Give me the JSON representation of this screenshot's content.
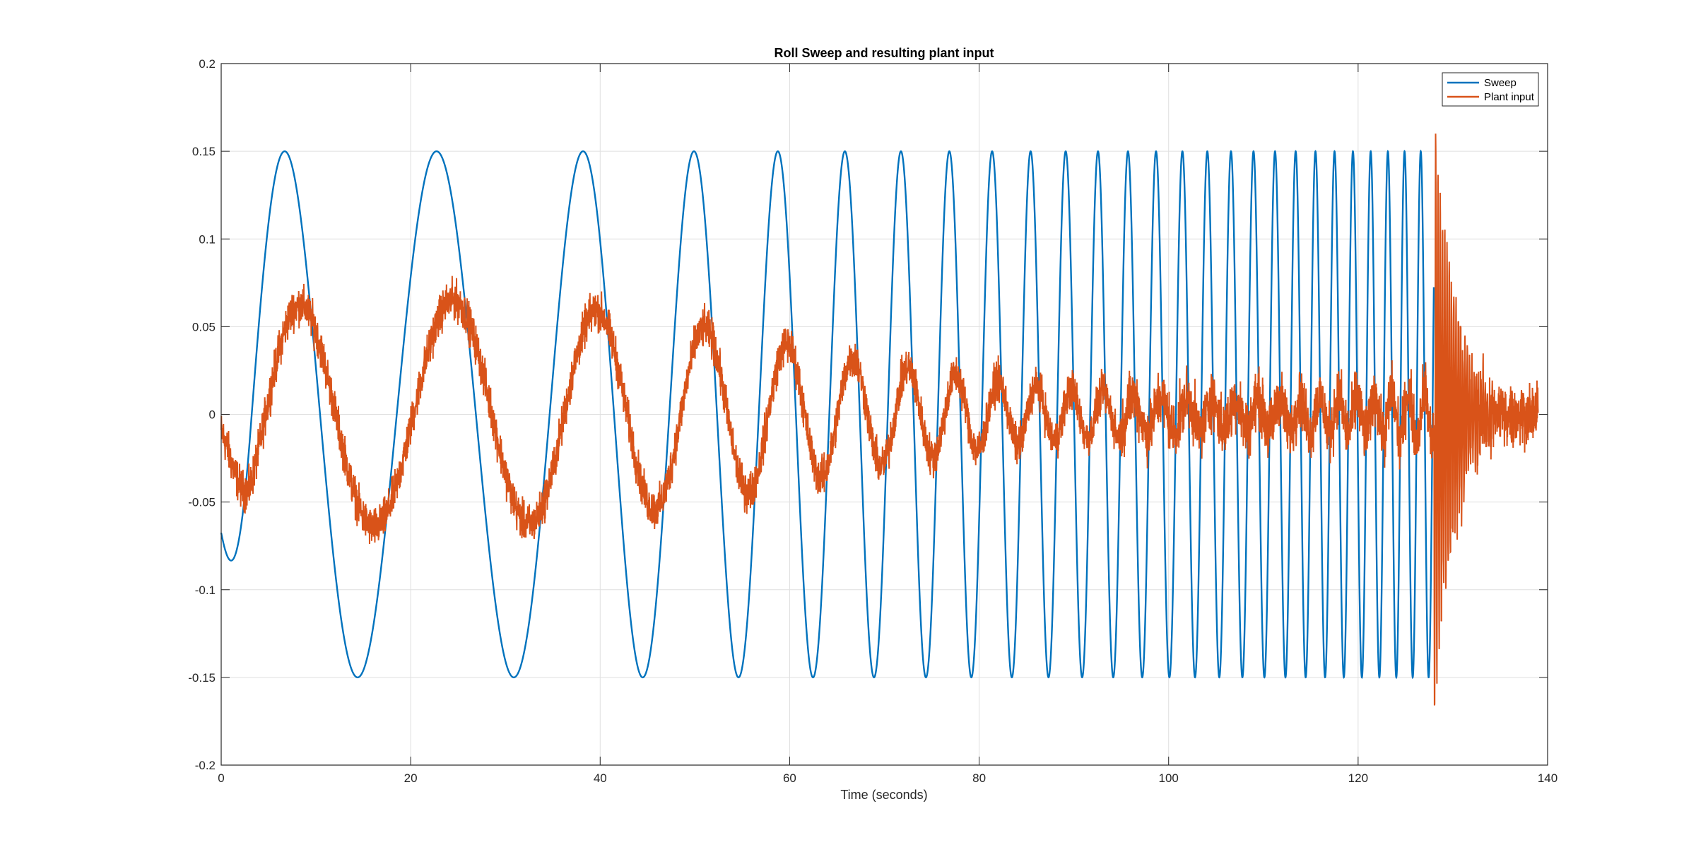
{
  "chart_data": {
    "type": "line",
    "title": "Roll Sweep and resulting plant input",
    "xlabel": "Time (seconds)",
    "ylabel": "",
    "xlim": [
      0,
      140
    ],
    "ylim": [
      -0.2,
      0.2
    ],
    "xticks": [
      0,
      20,
      40,
      60,
      80,
      100,
      120,
      140
    ],
    "xtick_labels": [
      "0",
      "20",
      "40",
      "60",
      "80",
      "100",
      "120",
      "140"
    ],
    "yticks": [
      -0.2,
      -0.15,
      -0.1,
      -0.05,
      0,
      0.05,
      0.1,
      0.15,
      0.2
    ],
    "ytick_labels": [
      "-0.2",
      "-0.15",
      "-0.1",
      "-0.05",
      "0",
      "0.05",
      "0.1",
      "0.15",
      "0.2"
    ],
    "grid": true,
    "legend_position": "top-right",
    "series": [
      {
        "name": "Sweep",
        "color": "#0072BD",
        "description_points": {
          "t_range": [
            0,
            128
          ],
          "amplitude": 0.15,
          "peaks_t": [
            6.3,
            26.6,
            46.6,
            58.8,
            66.6,
            71.7,
            75.7,
            79.0
          ],
          "troughs_t": [
            16.6,
            36.9,
            53.7,
            62.8,
            69.0,
            73.7,
            77.3
          ]
        }
      },
      {
        "name": "Plant input",
        "color": "#D95319",
        "description_points": {
          "t_range": [
            0,
            139
          ],
          "peaks": [
            [
              9.0,
              0.07
            ],
            [
              29.0,
              0.08
            ],
            [
              48.0,
              0.07
            ],
            [
              59.5,
              0.055
            ],
            [
              67.0,
              0.045
            ],
            [
              73.0,
              0.02
            ],
            [
              129.5,
              0.175
            ]
          ],
          "troughs": [
            [
              19.0,
              -0.065
            ],
            [
              39.0,
              -0.07
            ],
            [
              55.5,
              -0.055
            ],
            [
              63.5,
              -0.045
            ],
            [
              70.5,
              -0.03
            ],
            [
              130.0,
              -0.18
            ]
          ]
        }
      }
    ]
  }
}
